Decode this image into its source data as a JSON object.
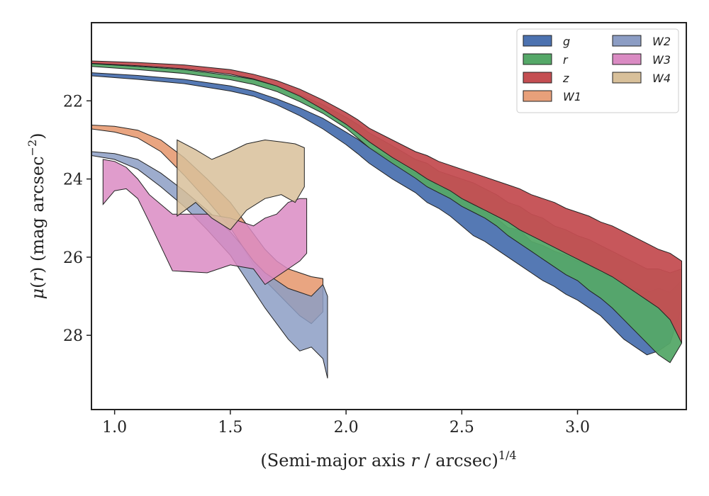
{
  "chart_data": {
    "type": "area",
    "xlabel": "(Semi-major axis r / arcsec)^1/4",
    "xlabel_parts": {
      "pre": "(Semi-major axis ",
      "var": "r",
      "post": " / arcsec)",
      "sup": "1/4"
    },
    "ylabel": "μ(r) (mag arcsec^-2)",
    "ylabel_parts": {
      "mu": "μ",
      "paren_open": "(",
      "var": "r",
      "paren_close": ")",
      "pre_unit": " (mag arcsec",
      "sup": "−2",
      "close": ")"
    },
    "xlim": [
      0.9,
      3.47
    ],
    "ylim": [
      29.9,
      20.0
    ],
    "y_inverted": true,
    "x_ticks": [
      1.0,
      1.5,
      2.0,
      2.5,
      3.0
    ],
    "x_tick_labels": [
      "1.0",
      "1.5",
      "2.0",
      "2.5",
      "3.0"
    ],
    "y_ticks": [
      22,
      24,
      26,
      28
    ],
    "y_tick_labels": [
      "22",
      "24",
      "26",
      "28"
    ],
    "grid": false,
    "legend": {
      "placement": "top-right",
      "columns": 2
    },
    "series": [
      {
        "name": "g",
        "color": "#4c72b0",
        "points": [
          [
            0.9,
            21.28,
            21.36
          ],
          [
            1.1,
            21.35,
            21.45
          ],
          [
            1.3,
            21.45,
            21.56
          ],
          [
            1.5,
            21.62,
            21.75
          ],
          [
            1.6,
            21.75,
            21.88
          ],
          [
            1.7,
            21.95,
            22.1
          ],
          [
            1.8,
            22.18,
            22.38
          ],
          [
            1.9,
            22.45,
            22.72
          ],
          [
            2.0,
            22.8,
            23.12
          ],
          [
            2.05,
            22.98,
            23.35
          ],
          [
            2.1,
            23.2,
            23.6
          ],
          [
            2.2,
            23.5,
            24.0
          ],
          [
            2.3,
            23.85,
            24.35
          ],
          [
            2.35,
            23.95,
            24.6
          ],
          [
            2.4,
            24.2,
            24.75
          ],
          [
            2.45,
            24.3,
            24.95
          ],
          [
            2.5,
            24.5,
            25.2
          ],
          [
            2.55,
            24.6,
            25.45
          ],
          [
            2.6,
            24.85,
            25.6
          ],
          [
            2.65,
            25.0,
            25.8
          ],
          [
            2.7,
            25.25,
            26.0
          ],
          [
            2.75,
            25.3,
            26.2
          ],
          [
            2.8,
            25.6,
            26.4
          ],
          [
            2.85,
            25.7,
            26.6
          ],
          [
            2.9,
            25.85,
            26.75
          ],
          [
            2.95,
            25.95,
            26.95
          ],
          [
            3.0,
            26.1,
            27.1
          ],
          [
            3.05,
            26.2,
            27.3
          ],
          [
            3.1,
            26.4,
            27.5
          ],
          [
            3.15,
            26.5,
            27.8
          ],
          [
            3.2,
            26.6,
            28.1
          ],
          [
            3.25,
            26.8,
            28.3
          ],
          [
            3.3,
            26.9,
            28.5
          ],
          [
            3.35,
            26.8,
            28.4
          ],
          [
            3.4,
            26.9,
            28.2
          ],
          [
            3.45,
            26.6,
            27.3
          ]
        ]
      },
      {
        "name": "r",
        "color": "#55a868",
        "points": [
          [
            0.9,
            21.05,
            21.12
          ],
          [
            1.1,
            21.12,
            21.2
          ],
          [
            1.3,
            21.2,
            21.3
          ],
          [
            1.5,
            21.35,
            21.46
          ],
          [
            1.6,
            21.45,
            21.58
          ],
          [
            1.7,
            21.62,
            21.76
          ],
          [
            1.8,
            21.85,
            22.02
          ],
          [
            1.9,
            22.1,
            22.32
          ],
          [
            2.0,
            22.42,
            22.7
          ],
          [
            2.05,
            22.6,
            22.95
          ],
          [
            2.1,
            22.82,
            23.2
          ],
          [
            2.2,
            23.15,
            23.6
          ],
          [
            2.3,
            23.5,
            23.98
          ],
          [
            2.35,
            23.6,
            24.2
          ],
          [
            2.4,
            23.8,
            24.35
          ],
          [
            2.45,
            23.9,
            24.5
          ],
          [
            2.5,
            24.0,
            24.7
          ],
          [
            2.55,
            24.1,
            24.85
          ],
          [
            2.6,
            24.25,
            25.0
          ],
          [
            2.65,
            24.4,
            25.2
          ],
          [
            2.7,
            24.6,
            25.45
          ],
          [
            2.75,
            24.7,
            25.65
          ],
          [
            2.8,
            24.9,
            25.85
          ],
          [
            2.85,
            25.0,
            26.05
          ],
          [
            2.9,
            25.2,
            26.25
          ],
          [
            2.95,
            25.3,
            26.45
          ],
          [
            3.0,
            25.45,
            26.6
          ],
          [
            3.05,
            25.55,
            26.85
          ],
          [
            3.1,
            25.7,
            27.05
          ],
          [
            3.15,
            25.85,
            27.3
          ],
          [
            3.2,
            26.0,
            27.6
          ],
          [
            3.25,
            26.15,
            27.9
          ],
          [
            3.3,
            26.3,
            28.2
          ],
          [
            3.35,
            26.3,
            28.5
          ],
          [
            3.4,
            26.4,
            28.7
          ],
          [
            3.45,
            26.3,
            28.2
          ]
        ]
      },
      {
        "name": "z",
        "color": "#c44e52",
        "points": [
          [
            0.9,
            20.98,
            21.04
          ],
          [
            1.1,
            21.02,
            21.1
          ],
          [
            1.3,
            21.08,
            21.18
          ],
          [
            1.5,
            21.2,
            21.32
          ],
          [
            1.6,
            21.32,
            21.44
          ],
          [
            1.7,
            21.48,
            21.62
          ],
          [
            1.8,
            21.7,
            21.88
          ],
          [
            1.9,
            21.98,
            22.22
          ],
          [
            2.0,
            22.3,
            22.6
          ],
          [
            2.05,
            22.48,
            22.82
          ],
          [
            2.1,
            22.7,
            23.05
          ],
          [
            2.2,
            23.0,
            23.45
          ],
          [
            2.3,
            23.3,
            23.8
          ],
          [
            2.35,
            23.4,
            24.0
          ],
          [
            2.4,
            23.55,
            24.15
          ],
          [
            2.45,
            23.65,
            24.3
          ],
          [
            2.5,
            23.75,
            24.5
          ],
          [
            2.55,
            23.85,
            24.65
          ],
          [
            2.6,
            23.95,
            24.8
          ],
          [
            2.65,
            24.05,
            24.95
          ],
          [
            2.7,
            24.15,
            25.1
          ],
          [
            2.75,
            24.25,
            25.3
          ],
          [
            2.8,
            24.4,
            25.45
          ],
          [
            2.85,
            24.5,
            25.6
          ],
          [
            2.9,
            24.6,
            25.75
          ],
          [
            2.95,
            24.75,
            25.9
          ],
          [
            3.0,
            24.85,
            26.05
          ],
          [
            3.05,
            24.95,
            26.2
          ],
          [
            3.1,
            25.1,
            26.35
          ],
          [
            3.15,
            25.2,
            26.5
          ],
          [
            3.2,
            25.35,
            26.7
          ],
          [
            3.25,
            25.5,
            26.9
          ],
          [
            3.3,
            25.65,
            27.1
          ],
          [
            3.35,
            25.8,
            27.3
          ],
          [
            3.4,
            25.9,
            27.6
          ],
          [
            3.45,
            26.1,
            28.2
          ]
        ]
      },
      {
        "name": "W1",
        "color": "#e8a07a",
        "points": [
          [
            0.9,
            22.62,
            22.72
          ],
          [
            1.0,
            22.65,
            22.8
          ],
          [
            1.1,
            22.75,
            22.95
          ],
          [
            1.2,
            23.0,
            23.3
          ],
          [
            1.3,
            23.45,
            23.9
          ],
          [
            1.4,
            24.0,
            24.55
          ],
          [
            1.5,
            24.6,
            25.25
          ],
          [
            1.55,
            25.0,
            25.7
          ],
          [
            1.6,
            25.4,
            26.2
          ],
          [
            1.65,
            25.8,
            26.6
          ],
          [
            1.7,
            26.1,
            26.9
          ],
          [
            1.75,
            26.3,
            27.2
          ],
          [
            1.8,
            26.4,
            27.5
          ],
          [
            1.85,
            26.5,
            27.7
          ],
          [
            1.9,
            26.55,
            27.4
          ]
        ]
      },
      {
        "name": "W2",
        "color": "#8c9dc4",
        "points": [
          [
            0.9,
            23.3,
            23.4
          ],
          [
            1.0,
            23.35,
            23.5
          ],
          [
            1.1,
            23.5,
            23.75
          ],
          [
            1.2,
            23.85,
            24.2
          ],
          [
            1.3,
            24.3,
            24.7
          ],
          [
            1.4,
            24.8,
            25.3
          ],
          [
            1.5,
            25.35,
            25.95
          ],
          [
            1.55,
            25.7,
            26.4
          ],
          [
            1.6,
            26.1,
            26.85
          ],
          [
            1.65,
            26.4,
            27.3
          ],
          [
            1.7,
            26.6,
            27.7
          ],
          [
            1.75,
            26.8,
            28.1
          ],
          [
            1.8,
            26.9,
            28.4
          ],
          [
            1.85,
            27.0,
            28.3
          ],
          [
            1.9,
            26.7,
            28.6
          ],
          [
            1.92,
            27.0,
            29.1
          ]
        ]
      },
      {
        "name": "W3",
        "color": "#da8bc3",
        "points": [
          [
            0.95,
            23.5,
            24.65
          ],
          [
            1.0,
            23.55,
            24.3
          ],
          [
            1.05,
            23.7,
            24.25
          ],
          [
            1.1,
            24.0,
            24.5
          ],
          [
            1.15,
            24.4,
            25.1
          ],
          [
            1.25,
            24.9,
            26.35
          ],
          [
            1.4,
            24.9,
            26.4
          ],
          [
            1.5,
            25.0,
            26.2
          ],
          [
            1.6,
            25.2,
            26.3
          ],
          [
            1.65,
            25.0,
            26.7
          ],
          [
            1.7,
            24.9,
            26.5
          ],
          [
            1.75,
            24.6,
            26.3
          ],
          [
            1.8,
            24.5,
            26.1
          ],
          [
            1.83,
            24.5,
            25.9
          ]
        ]
      },
      {
        "name": "W4",
        "color": "#d8c09a",
        "points": [
          [
            1.27,
            23.0,
            24.95
          ],
          [
            1.35,
            23.25,
            24.6
          ],
          [
            1.42,
            23.5,
            25.0
          ],
          [
            1.5,
            23.3,
            25.3
          ],
          [
            1.57,
            23.1,
            24.8
          ],
          [
            1.65,
            23.0,
            24.5
          ],
          [
            1.72,
            23.05,
            24.4
          ],
          [
            1.78,
            23.1,
            24.6
          ],
          [
            1.82,
            23.2,
            24.2
          ]
        ]
      }
    ]
  }
}
